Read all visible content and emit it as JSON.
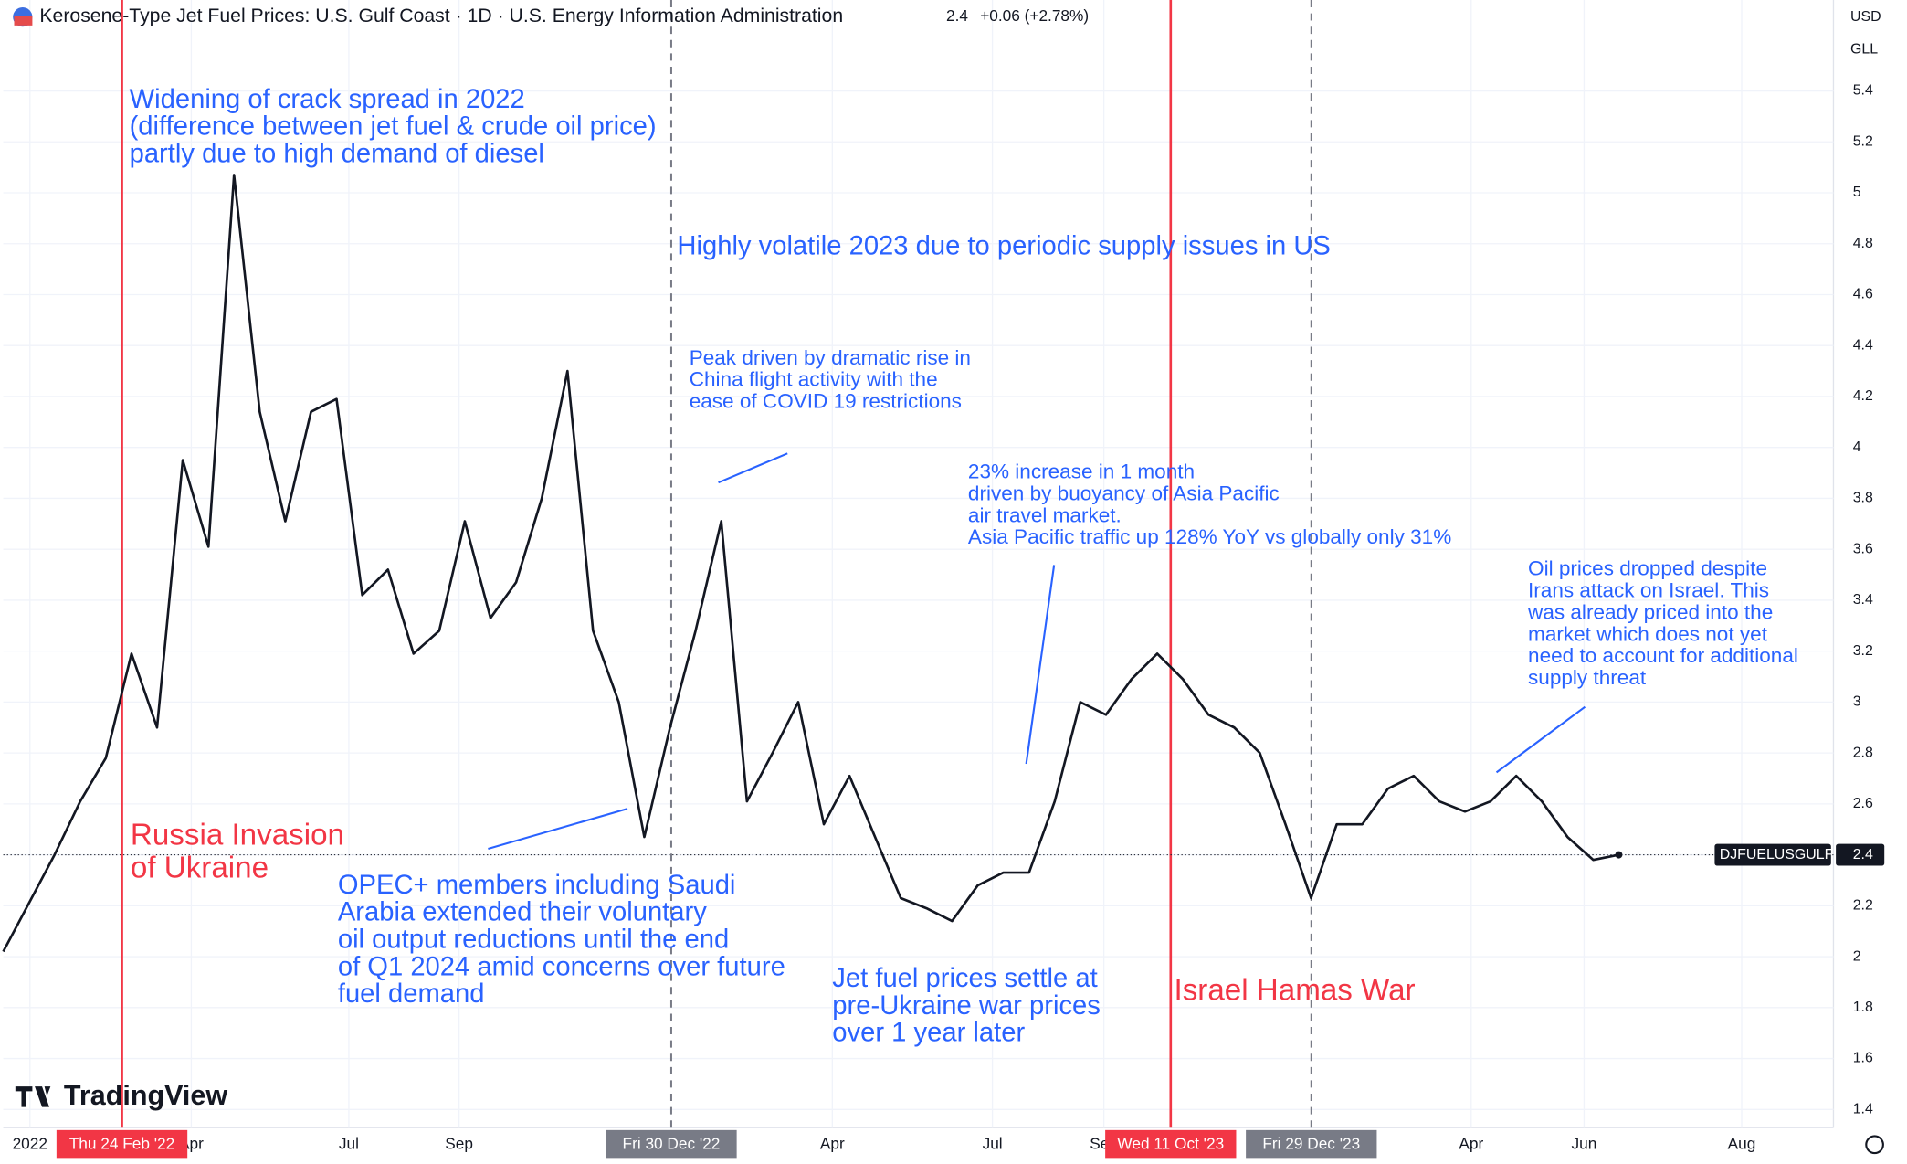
{
  "chart_data": {
    "type": "line",
    "header": {
      "title": "Kerosene-Type Jet Fuel Prices: U.S. Gulf Coast · 1D · U.S. Energy Information Administration",
      "last": "2.4",
      "change": "+0.06 (+2.78%)"
    },
    "currency": "USD",
    "unit": "GLL",
    "brand": "TradingView",
    "series": [
      {
        "name": "DJFUELUSGULF",
        "color": "#131722",
        "values": [
          2.02,
          2.21,
          2.4,
          2.61,
          2.78,
          3.19,
          2.9,
          3.95,
          3.61,
          5.07,
          4.14,
          3.71,
          4.14,
          4.19,
          3.42,
          3.52,
          3.19,
          3.28,
          3.71,
          3.33,
          3.47,
          3.8,
          4.3,
          3.28,
          3.0,
          2.47,
          2.9,
          3.28,
          3.71,
          2.61,
          2.8,
          3.0,
          2.52,
          2.71,
          2.47,
          2.23,
          2.19,
          2.14,
          2.28,
          2.33,
          2.33,
          2.61,
          3.0,
          2.95,
          3.09,
          3.19,
          3.09,
          2.95,
          2.9,
          2.8,
          2.52,
          2.23,
          2.52,
          2.52,
          2.66,
          2.71,
          2.61,
          2.57,
          2.61,
          2.71,
          2.61,
          2.47,
          2.38,
          2.4
        ]
      }
    ],
    "price_tag": {
      "name": "DJFUELUSGULF",
      "value": "2.4"
    },
    "xlim": [
      0,
      73.4
    ],
    "xticks": [
      {
        "value": 1.07,
        "label": "2022"
      },
      {
        "value": 7.54,
        "label": "Apr"
      },
      {
        "value": 13.86,
        "label": "Jul"
      },
      {
        "value": 18.28,
        "label": "Sep"
      },
      {
        "value": 33.25,
        "label": "Apr"
      },
      {
        "value": 39.67,
        "label": "Jul"
      },
      {
        "value": 44.14,
        "label": "Sep"
      },
      {
        "value": 58.87,
        "label": "Apr"
      },
      {
        "value": 63.4,
        "label": "Jun"
      },
      {
        "value": 69.72,
        "label": "Aug"
      }
    ],
    "ylim": [
      1.3,
      5.5
    ],
    "yticks": [
      1.4,
      1.6,
      1.8,
      2,
      2.2,
      2.4,
      2.6,
      2.8,
      3,
      3.2,
      3.4,
      3.6,
      3.8,
      4,
      4.2,
      4.4,
      4.6,
      4.8,
      5,
      5.2,
      5.4
    ],
    "grid": true,
    "markers": [
      {
        "x": 4.76,
        "label": "Thu 24 Feb '22",
        "color": "#f23645",
        "dashed": false
      },
      {
        "x": 26.79,
        "label": "Fri 30 Dec '22",
        "color": "#787b86",
        "dashed": true
      },
      {
        "x": 46.82,
        "label": "Wed 11 Oct '23",
        "color": "#f23645",
        "dashed": false
      },
      {
        "x": 52.46,
        "label": "Fri 29 Dec '23",
        "color": "#787b86",
        "dashed": true
      }
    ],
    "annotations": [
      {
        "color": "#2962ff",
        "lines": [
          "Widening of crack spread in 2022",
          "(difference between jet fuel & crude oil price)",
          "partly due to high demand of diesel"
        ]
      },
      {
        "color": "#2962ff",
        "lines": [
          "Highly volatile 2023 due to periodic supply issues in US"
        ]
      },
      {
        "color": "#2962ff",
        "lines": [
          "Peak driven by dramatic rise in",
          "China flight activity with the",
          "ease of COVID 19 restrictions"
        ]
      },
      {
        "color": "#2962ff",
        "lines": [
          "23% increase in 1 month",
          "driven by buoyancy of Asia Pacific",
          "air travel market.",
          "Asia Pacific traffic up 128% YoY vs globally only 31%"
        ]
      },
      {
        "color": "#2962ff",
        "lines": [
          "Oil prices dropped despite",
          "Irans attack on Israel. This",
          "was already priced into the",
          "market which does not yet",
          "need to account for additional",
          "supply threat"
        ]
      },
      {
        "color": "#f23645",
        "lines": [
          "Russia Invasion",
          "of Ukraine"
        ]
      },
      {
        "color": "#2962ff",
        "lines": [
          "OPEC+ members including Saudi",
          "Arabia extended their voluntary",
          "oil output reductions until the end",
          "of Q1 2024 amid concerns over future",
          "fuel demand"
        ]
      },
      {
        "color": "#2962ff",
        "lines": [
          "Jet fuel prices settle at",
          "pre-Ukraine war prices",
          "over 1 year later"
        ]
      },
      {
        "color": "#f23645",
        "lines": [
          "Israel Hamas War"
        ]
      }
    ]
  }
}
